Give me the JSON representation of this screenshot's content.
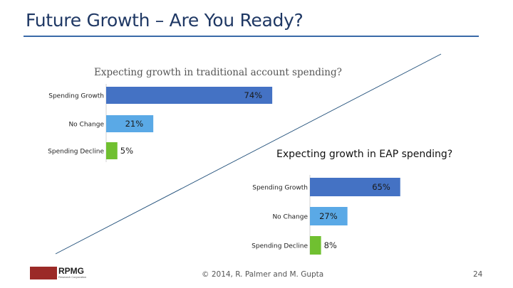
{
  "slide": {
    "title": "Future Growth – Are You Ready?",
    "footer": "© 2014, R. Palmer and M. Gupta",
    "page_number": "24",
    "logo_text": "RPMG",
    "logo_subtext": "Research Corporation"
  },
  "colors": {
    "title": "#1f3864",
    "rule": "#3a6aa8",
    "spending_growth": "#4472c4",
    "no_change": "#5aa9e6",
    "spending_decline": "#70c030",
    "logo": "#9b2a27"
  },
  "chart_data": [
    {
      "type": "bar",
      "orientation": "horizontal",
      "title": "Expecting growth in traditional account spending?",
      "categories": [
        "Spending Growth",
        "No Change",
        "Spending Decline"
      ],
      "values": [
        74,
        21,
        5
      ],
      "data_labels": [
        "74%",
        "21%",
        "5%"
      ],
      "xlim": [
        0,
        100
      ]
    },
    {
      "type": "bar",
      "orientation": "horizontal",
      "title": "Expecting growth in EAP spending?",
      "categories": [
        "Spending Growth",
        "No Change",
        "Spending Decline"
      ],
      "values": [
        65,
        27,
        8
      ],
      "data_labels": [
        "65%",
        "27%",
        "8%"
      ],
      "xlim": [
        0,
        100
      ]
    }
  ]
}
